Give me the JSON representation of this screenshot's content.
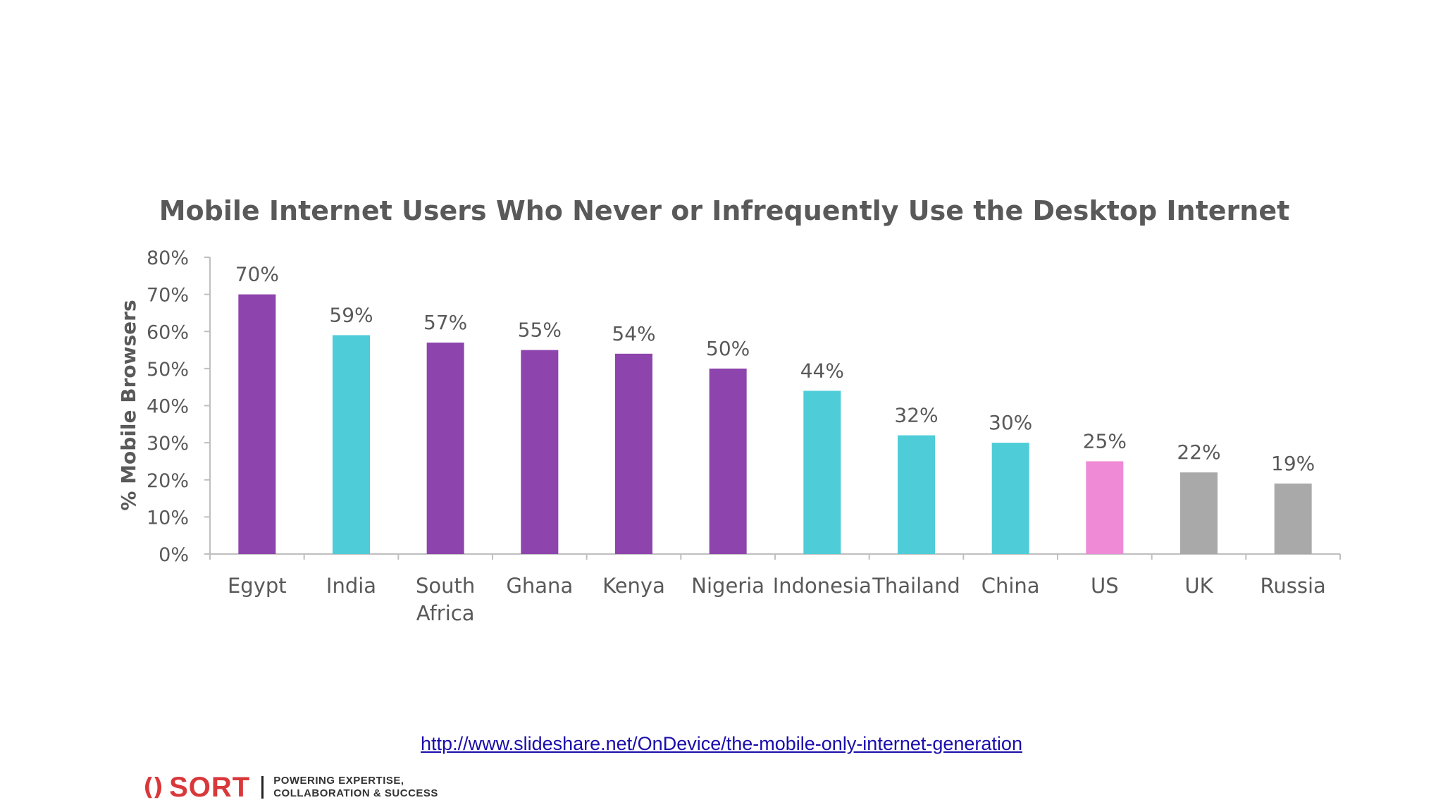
{
  "chart_data": {
    "type": "bar",
    "title": "Mobile Internet Users Who Never or Infrequently Use the Desktop Internet",
    "xlabel": "",
    "ylabel": "% Mobile Browsers",
    "ylim": [
      0,
      80
    ],
    "y_ticks": [
      0,
      10,
      20,
      30,
      40,
      50,
      60,
      70,
      80
    ],
    "y_tick_labels": [
      "0%",
      "10%",
      "20%",
      "30%",
      "40%",
      "50%",
      "60%",
      "70%",
      "80%"
    ],
    "categories": [
      [
        "Egypt"
      ],
      [
        "India"
      ],
      [
        "South",
        "Africa"
      ],
      [
        "Ghana"
      ],
      [
        "Kenya"
      ],
      [
        "Nigeria"
      ],
      [
        "Indonesia"
      ],
      [
        "Thailand"
      ],
      [
        "China"
      ],
      [
        "US"
      ],
      [
        "UK"
      ],
      [
        "Russia"
      ]
    ],
    "values": [
      70,
      59,
      57,
      55,
      54,
      50,
      44,
      32,
      30,
      25,
      22,
      19
    ],
    "data_labels": [
      "70%",
      "59%",
      "57%",
      "55%",
      "54%",
      "50%",
      "44%",
      "32%",
      "30%",
      "25%",
      "22%",
      "19%"
    ],
    "bar_colors": [
      "#8e44ad",
      "#4ecdd8",
      "#8e44ad",
      "#8e44ad",
      "#8e44ad",
      "#8e44ad",
      "#4ecdd8",
      "#4ecdd8",
      "#4ecdd8",
      "#ee8ad6",
      "#a9a9a9",
      "#a9a9a9"
    ],
    "grid": false,
    "legend": "none"
  },
  "source": {
    "link_text": "http://www.slideshare.net/OnDevice/the-mobile-only-internet-generation"
  },
  "branding": {
    "logo_mark": "()",
    "logo_word": "SORT",
    "tagline_line1": "POWERING EXPERTISE,",
    "tagline_line2": "COLLABORATION & SUCCESS",
    "logo_color": "#d9383a"
  }
}
